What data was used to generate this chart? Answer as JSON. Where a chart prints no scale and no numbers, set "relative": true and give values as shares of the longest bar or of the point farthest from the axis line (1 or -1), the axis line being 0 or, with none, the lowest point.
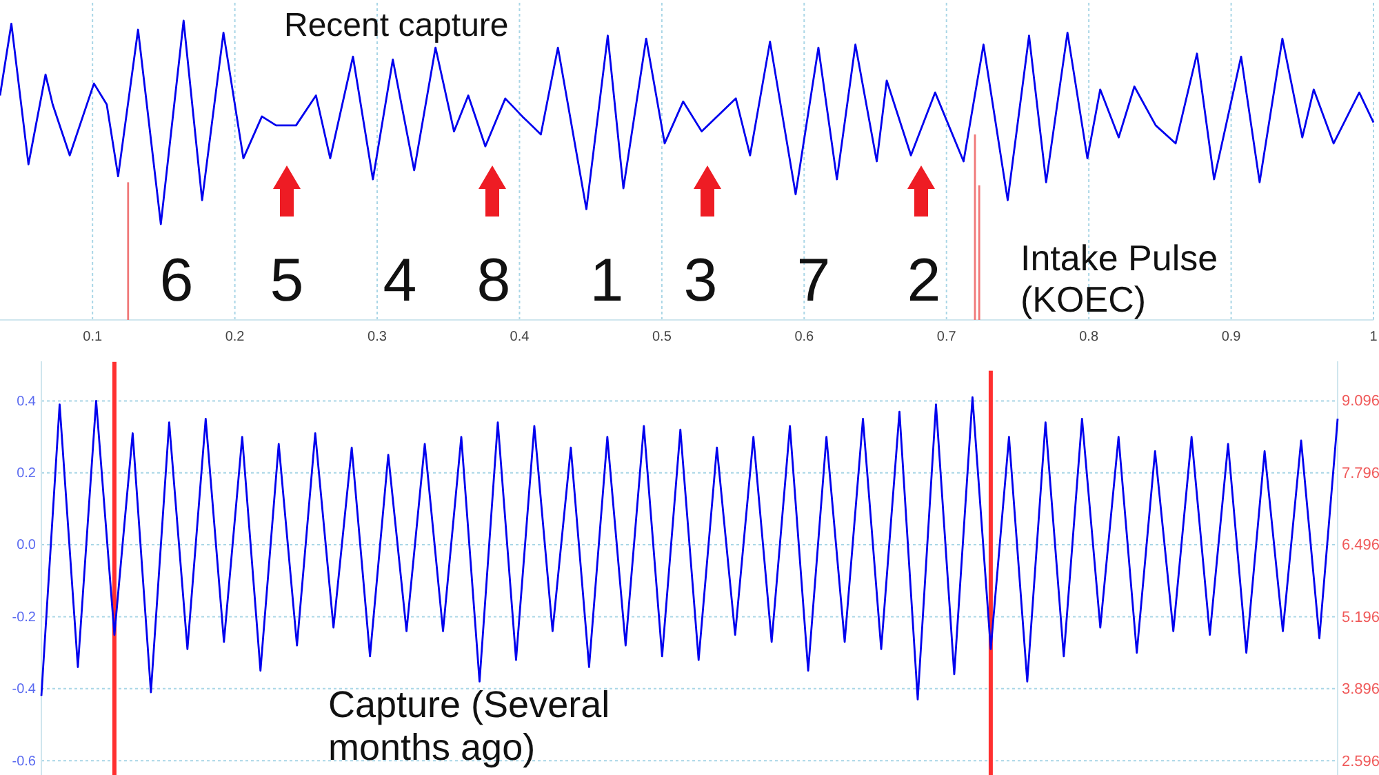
{
  "chart_data": [
    {
      "type": "line",
      "relative": true,
      "xlim": [
        0.035,
        1.0
      ],
      "xticks": [
        0.1,
        0.2,
        0.3,
        0.4,
        0.5,
        0.6,
        0.7,
        0.8,
        0.9,
        1
      ],
      "grid": "x",
      "tick_labels": "x",
      "series": [
        {
          "color": "#0000ee",
          "x": [
            0.035,
            0.043,
            0.055,
            0.067,
            0.072,
            0.084,
            0.101,
            0.11,
            0.118,
            0.132,
            0.148,
            0.164,
            0.177,
            0.192,
            0.206,
            0.219,
            0.229,
            0.243,
            0.257,
            0.267,
            0.283,
            0.297,
            0.311,
            0.326,
            0.341,
            0.354,
            0.364,
            0.376,
            0.39,
            0.402,
            0.415,
            0.427,
            0.447,
            0.462,
            0.473,
            0.489,
            0.502,
            0.515,
            0.528,
            0.552,
            0.562,
            0.576,
            0.594,
            0.61,
            0.623,
            0.636,
            0.651,
            0.658,
            0.675,
            0.692,
            0.712,
            0.726,
            0.743,
            0.758,
            0.77,
            0.785,
            0.799,
            0.808,
            0.821,
            0.832,
            0.847,
            0.861,
            0.876,
            0.888,
            0.907,
            0.92,
            0.936,
            0.95,
            0.958,
            0.972,
            0.99,
            1.0
          ],
          "values": [
            0.75,
            0.99,
            0.52,
            0.82,
            0.72,
            0.55,
            0.79,
            0.72,
            0.48,
            0.97,
            0.32,
            1.0,
            0.4,
            0.96,
            0.54,
            0.68,
            0.65,
            0.65,
            0.75,
            0.54,
            0.88,
            0.47,
            0.87,
            0.5,
            0.91,
            0.63,
            0.75,
            0.58,
            0.74,
            0.68,
            0.62,
            0.91,
            0.37,
            0.95,
            0.44,
            0.94,
            0.59,
            0.73,
            0.63,
            0.74,
            0.55,
            0.93,
            0.42,
            0.91,
            0.47,
            0.92,
            0.53,
            0.8,
            0.55,
            0.76,
            0.53,
            0.92,
            0.4,
            0.95,
            0.46,
            0.96,
            0.54,
            0.77,
            0.61,
            0.78,
            0.65,
            0.59,
            0.89,
            0.47,
            0.88,
            0.46,
            0.94,
            0.61,
            0.77,
            0.59,
            0.76,
            0.66
          ]
        },
        {
          "color": "#f07878",
          "x": [
            0.125,
            0.125
          ],
          "values": [
            0,
            0.46
          ]
        },
        {
          "color": "#f07878",
          "x": [
            0.72,
            0.72
          ],
          "values": [
            0,
            0.62
          ]
        },
        {
          "color": "#f07878",
          "x": [
            0.723,
            0.723
          ],
          "values": [
            0,
            0.45
          ]
        }
      ],
      "annotations": [
        "Recent capture",
        "6",
        "5",
        "4",
        "8",
        "1",
        "3",
        "7",
        "2",
        "Intake Pulse (KOEC)"
      ]
    },
    {
      "type": "line",
      "categories": [
        null,
        null,
        null,
        null,
        null,
        null,
        null,
        null,
        null,
        null,
        null,
        null,
        null,
        null,
        null,
        null,
        null,
        null,
        null,
        null,
        null,
        null,
        null,
        null,
        null,
        null,
        null,
        null,
        null,
        null,
        null,
        null,
        null,
        null,
        null,
        null,
        null,
        null,
        null,
        null,
        null,
        null,
        null,
        null,
        null,
        null,
        null,
        null,
        null,
        null,
        null,
        null,
        null,
        null,
        null,
        null,
        null,
        null,
        null,
        null,
        null,
        null,
        null,
        null,
        null,
        null,
        null,
        null,
        null,
        null,
        null,
        null
      ],
      "ylim": [
        -0.64,
        0.51
      ],
      "yticks": [
        0.4,
        0.2,
        {
          "value": 0,
          "label": "0.0"
        },
        -0.2,
        -0.4,
        -0.6
      ],
      "y2lim": [
        2.34,
        9.81
      ],
      "y2ticks": [
        9.096,
        7.796,
        6.496,
        5.196,
        3.896,
        2.596
      ],
      "grid": "y",
      "tick_labels": "y",
      "series": [
        {
          "color": "#0000ee",
          "values": [
            -0.42,
            0.39,
            -0.34,
            0.4,
            -0.25,
            0.31,
            -0.41,
            0.34,
            -0.29,
            0.35,
            -0.27,
            0.3,
            -0.35,
            0.28,
            -0.28,
            0.31,
            -0.23,
            0.27,
            -0.31,
            0.25,
            -0.24,
            0.28,
            -0.24,
            0.3,
            -0.38,
            0.34,
            -0.32,
            0.33,
            -0.24,
            0.27,
            -0.34,
            0.3,
            -0.28,
            0.33,
            -0.31,
            0.32,
            -0.32,
            0.27,
            -0.25,
            0.3,
            -0.27,
            0.33,
            -0.35,
            0.3,
            -0.27,
            0.35,
            -0.29,
            0.37,
            -0.43,
            0.39,
            -0.36,
            0.41,
            -0.29,
            0.3,
            -0.38,
            0.34,
            -0.31,
            0.35,
            -0.23,
            0.3,
            -0.3,
            0.26,
            -0.24,
            0.3,
            -0.25,
            0.28,
            -0.3,
            0.26,
            -0.24,
            0.29,
            -0.26,
            0.35
          ]
        },
        {
          "type": "bar",
          "axis": "y2",
          "color": "#ff3030",
          "base": [
            null,
            null,
            null,
            null,
            2.34,
            null,
            null,
            null,
            null,
            null,
            null,
            null,
            null,
            null,
            null,
            null,
            null,
            null,
            null,
            null,
            null,
            null,
            null,
            null,
            null,
            null,
            null,
            null,
            null,
            null,
            null,
            null,
            null,
            null,
            null,
            null,
            null,
            null,
            null,
            null,
            null,
            null,
            null,
            null,
            null,
            null,
            null,
            null,
            null,
            null,
            null,
            null,
            2.34,
            null,
            null,
            null,
            null,
            null,
            null,
            null,
            null,
            null,
            null,
            null,
            null,
            null,
            null,
            null,
            null,
            null,
            null,
            null
          ],
          "values": [
            null,
            null,
            null,
            null,
            7.46,
            null,
            null,
            null,
            null,
            null,
            null,
            null,
            null,
            null,
            null,
            null,
            null,
            null,
            null,
            null,
            null,
            null,
            null,
            null,
            null,
            null,
            null,
            null,
            null,
            null,
            null,
            null,
            null,
            null,
            null,
            null,
            null,
            null,
            null,
            null,
            null,
            null,
            null,
            null,
            null,
            null,
            null,
            null,
            null,
            null,
            null,
            null,
            7.3,
            null,
            null,
            null,
            null,
            null,
            null,
            null,
            null,
            null,
            null,
            null,
            null,
            null,
            null,
            null,
            null,
            null,
            null,
            null
          ]
        }
      ],
      "annotations": [
        "Capture (Several months ago)"
      ]
    }
  ]
}
